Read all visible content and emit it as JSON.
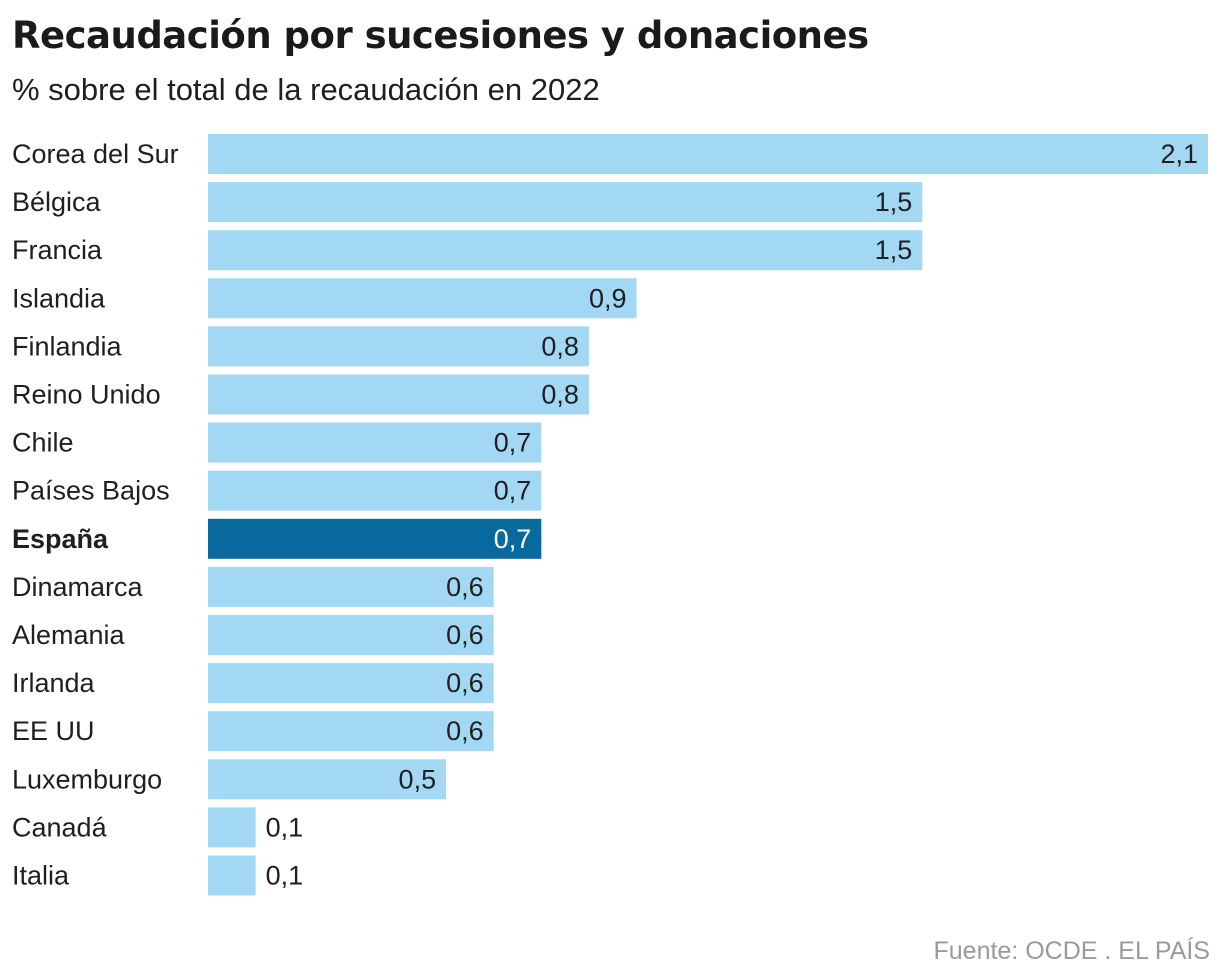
{
  "chart_data": {
    "type": "bar",
    "orientation": "horizontal",
    "title": "Recaudación por sucesiones y donaciones",
    "subtitle": "% sobre el total de la recaudación en 2022",
    "categories": [
      "Corea del Sur",
      "Bélgica",
      "Francia",
      "Islandia",
      "Finlandia",
      "Reino Unido",
      "Chile",
      "Países Bajos",
      "España",
      "Dinamarca",
      "Alemania",
      "Irlanda",
      "EE UU",
      "Luxemburgo",
      "Canadá",
      "Italia"
    ],
    "values": [
      2.1,
      1.5,
      1.5,
      0.9,
      0.8,
      0.8,
      0.7,
      0.7,
      0.7,
      0.6,
      0.6,
      0.6,
      0.6,
      0.5,
      0.1,
      0.1
    ],
    "value_labels": [
      "2,1",
      "1,5",
      "1,5",
      "0,9",
      "0,8",
      "0,8",
      "0,7",
      "0,7",
      "0,7",
      "0,6",
      "0,6",
      "0,6",
      "0,6",
      "0,5",
      "0,1",
      "0,1"
    ],
    "highlight": "España",
    "xlim": [
      0,
      2.1
    ],
    "grid": false,
    "legend": "none",
    "colors": {
      "bar": "#a3d8f5",
      "highlight_bar": "#086a9c"
    }
  },
  "source": "Fuente: OCDE . EL PAÍS"
}
